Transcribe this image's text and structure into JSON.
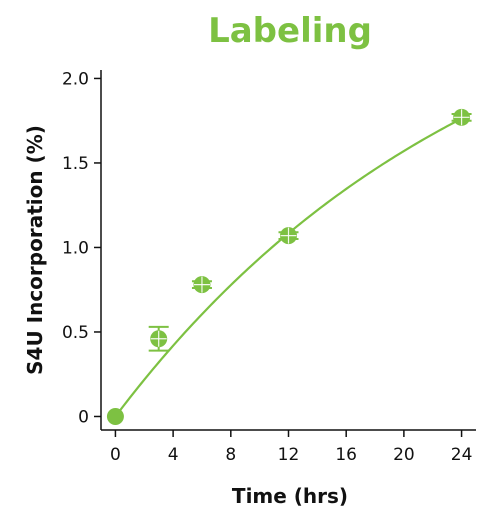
{
  "chart_data": {
    "type": "scatter",
    "title": "Labeling",
    "xlabel": "Time (hrs)",
    "ylabel": "S4U Incorporation (%)",
    "xlim": [
      -1,
      25
    ],
    "ylim": [
      -0.08,
      2.05
    ],
    "x_ticks": [
      0,
      4,
      8,
      12,
      16,
      20,
      24
    ],
    "y_ticks": [
      0,
      0.5,
      1.0,
      1.5,
      2.0
    ],
    "y_tick_labels": [
      "0",
      "0.5",
      "1.0",
      "1.5",
      "2.0"
    ],
    "grid": false,
    "legend": "none",
    "color": "#7dc142",
    "series": [
      {
        "x": [
          0,
          3,
          6,
          12,
          24
        ],
        "y": [
          0.0,
          0.46,
          0.78,
          1.07,
          1.77
        ],
        "error": [
          0.0,
          0.07,
          0.02,
          0.02,
          0.02
        ]
      }
    ],
    "fit": {
      "type": "exponential-rise",
      "plateau": 2.9,
      "k": 0.039
    }
  }
}
